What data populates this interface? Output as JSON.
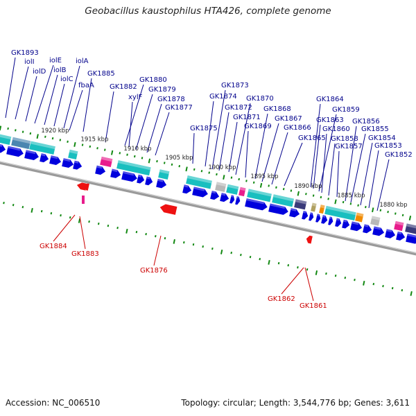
{
  "title": "Geobacillus kaustophilus HTA426, complete genome",
  "footer": {
    "accession": "Accession: NC_006510",
    "summary": "Topology: circular; Length: 3,544,776 bp; Genes: 3,611"
  },
  "colors": {
    "forward_gene": "#0000dd",
    "reverse_gene": "#ee1111",
    "upper_label": "#00008b",
    "lower_label": "#cc0000",
    "backbone": "#808080",
    "tick": "#118811",
    "cyan": "#19bfbf",
    "steel": "#4a86b0",
    "magenta": "#e81c8c",
    "grey": "#b8b8b8",
    "navy": "#3a3a7a",
    "orange": "#f08a00",
    "olive": "#b0a060"
  },
  "scale_labels": [
    "1920 kbp",
    "1915 kbp",
    "1910 kbp",
    "1905 kbp",
    "1900 kbp",
    "1895 kbp",
    "1890 kbp",
    "1885 kbp",
    "1880 kbp"
  ],
  "upper_labels": [
    "GK1893",
    "iolI",
    "iolD",
    "iolE",
    "iolB",
    "iolC",
    "iolA",
    "fbaA",
    "GK1885",
    "GK1882",
    "GK1880",
    "xylF",
    "GK1879",
    "GK1878",
    "GK1877",
    "GK1875",
    "GK1874",
    "GK1873",
    "GK1872",
    "GK1871",
    "GK1870",
    "GK1869",
    "GK1868",
    "GK1867",
    "GK1866",
    "GK1865",
    "GK1864",
    "GK1863",
    "GK1859",
    "GK1860",
    "GK1858",
    "GK1857",
    "GK1856",
    "GK1855",
    "GK1854",
    "GK1853",
    "GK1852"
  ],
  "lower_labels": [
    "GK1884",
    "GK1883",
    "GK1876",
    "GK1862",
    "GK1861"
  ]
}
